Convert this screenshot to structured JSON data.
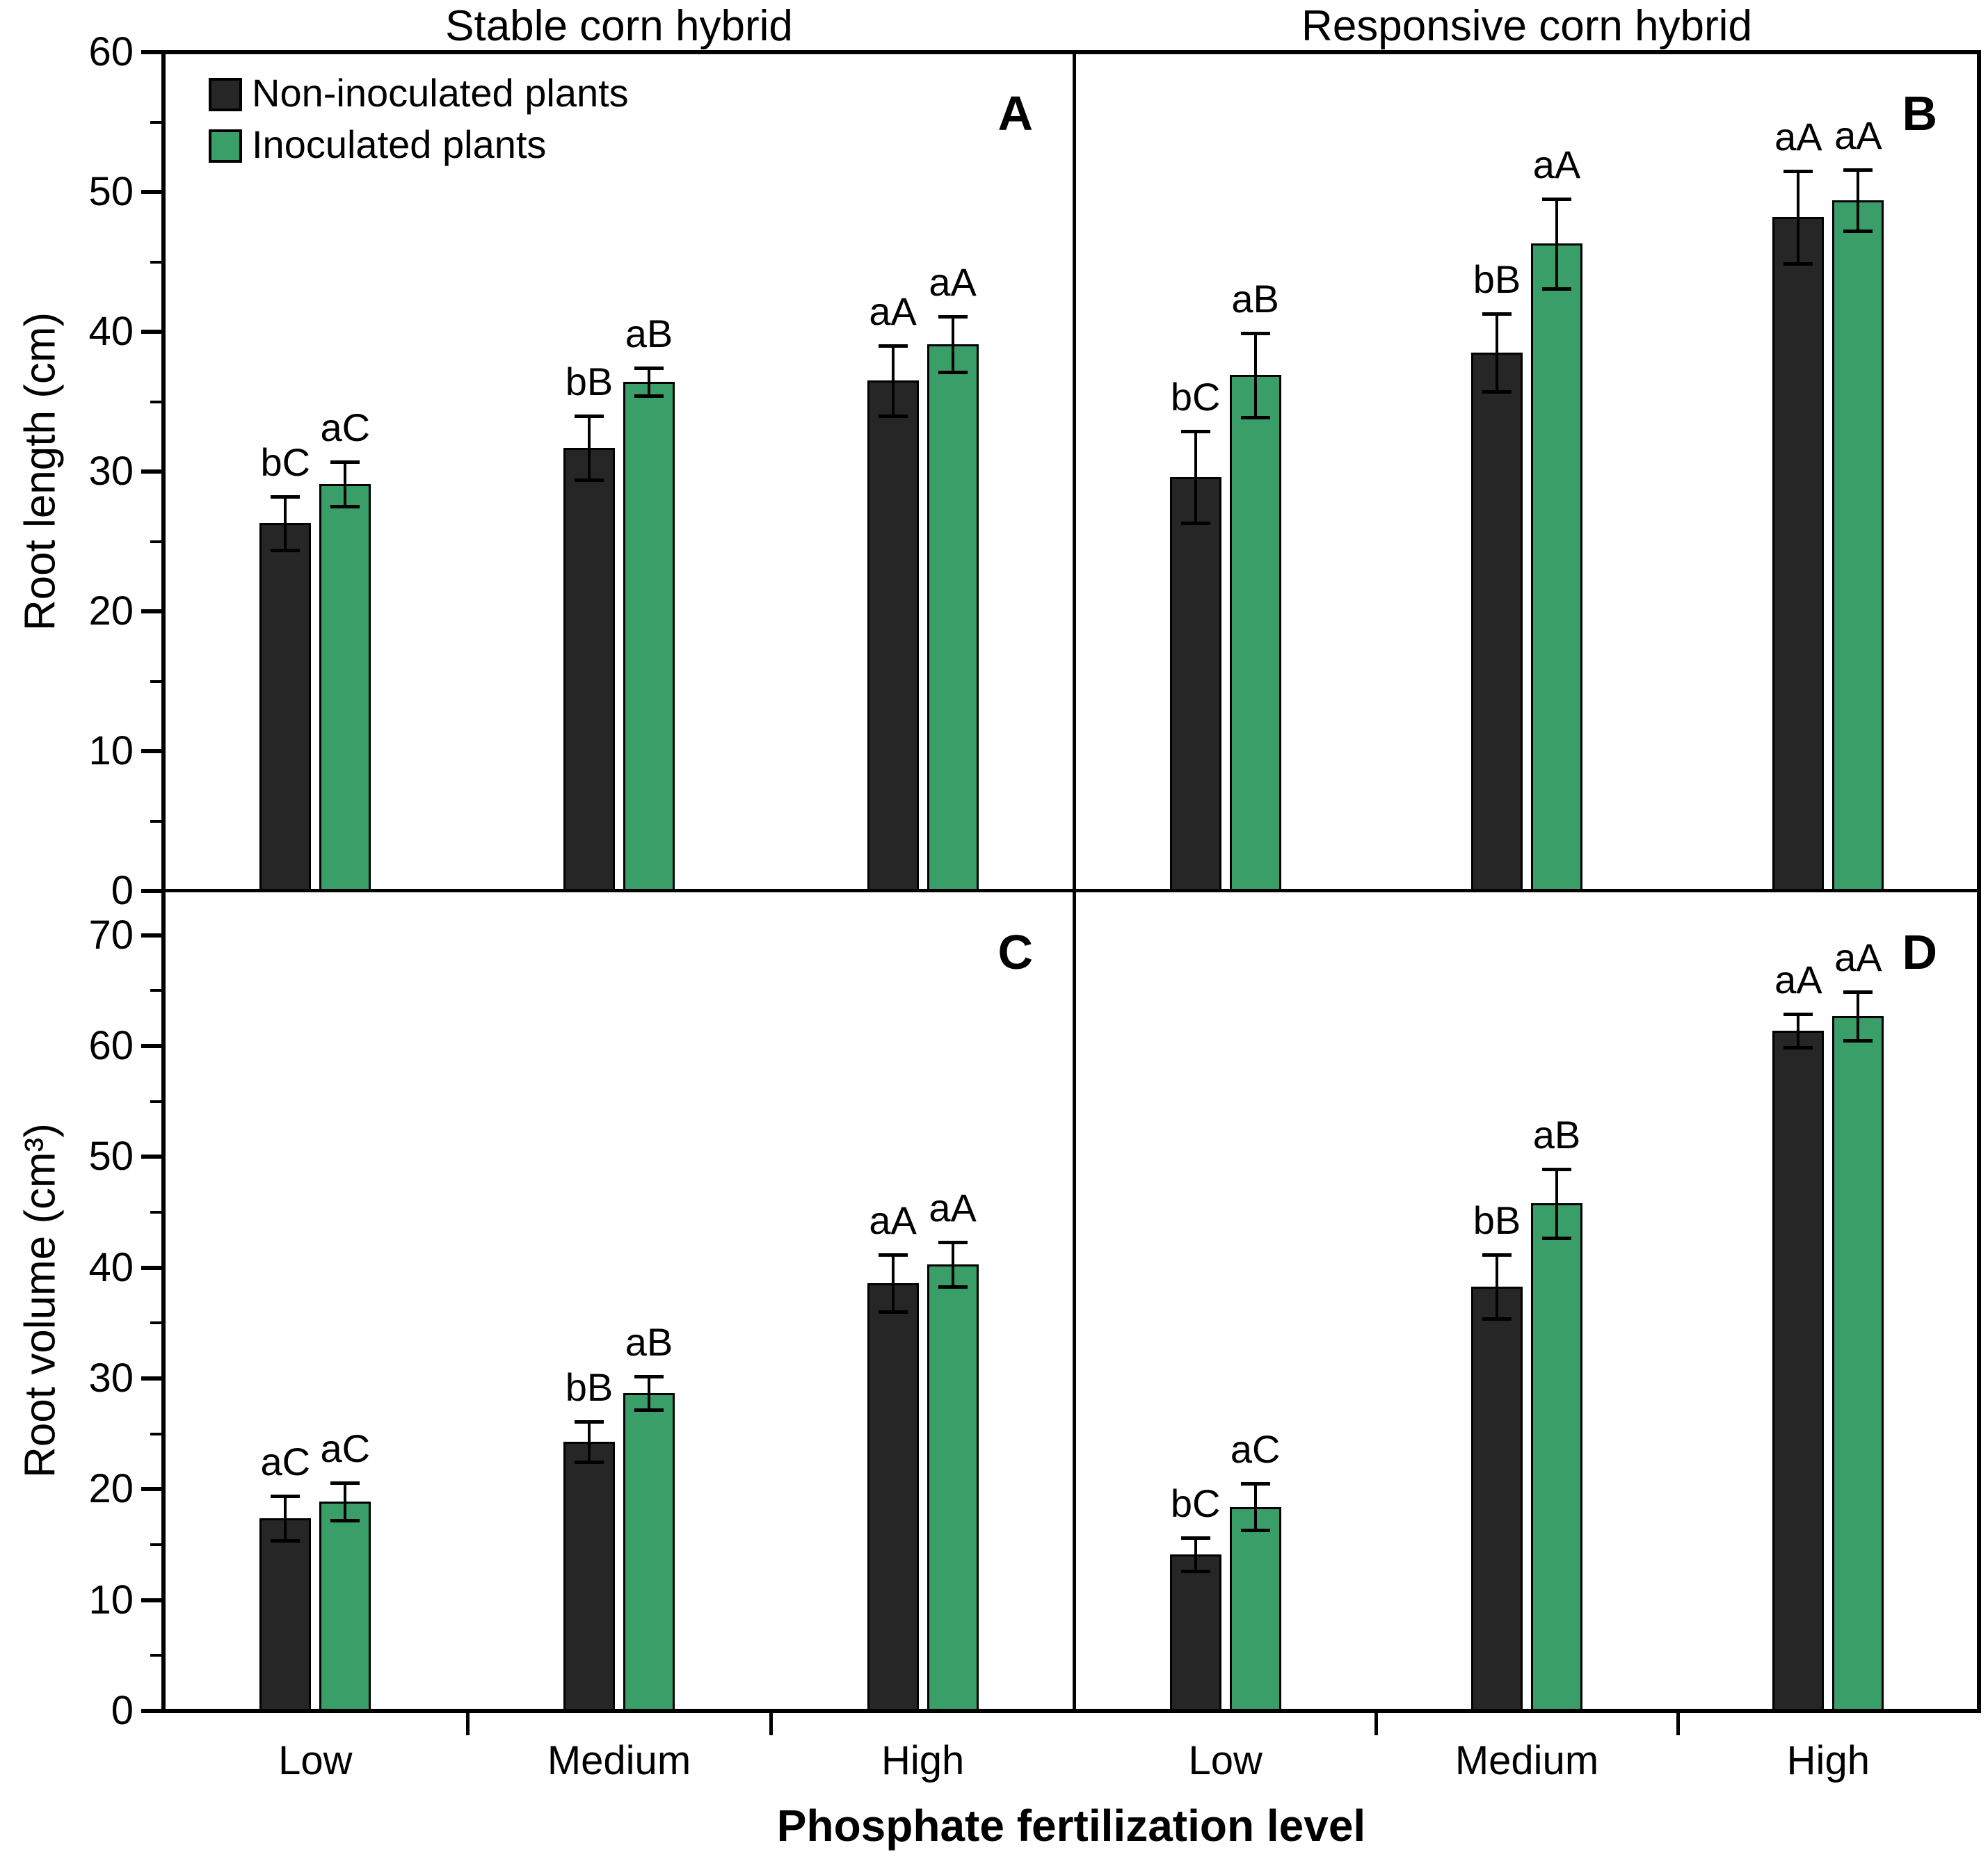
{
  "figure": {
    "xlabel": "Phosphate fertilization level",
    "background": "#ffffff"
  },
  "chart_data": {
    "type": "bar",
    "variant": "grouped-bar-with-error-bars",
    "categories": [
      "Low",
      "Medium",
      "High"
    ],
    "series": [
      "Non-inoculated plants",
      "Inoculated plants"
    ],
    "series_colors": [
      "#262626",
      "#3a9e68"
    ],
    "column_titles": [
      "Stable corn hybrid",
      "Responsive corn hybrid"
    ],
    "ylabels": [
      "Root length (cm)",
      "Root volume (cm³)"
    ],
    "xlabel": "Phosphate fertilization level",
    "legend_position": "top-left of panel A",
    "grid": false,
    "panels": [
      {
        "id": "A",
        "row": 0,
        "col": 0,
        "ylim": [
          0,
          60
        ],
        "axis_top": 60,
        "ytick_step": 10,
        "minor_step": 5,
        "groups": [
          {
            "category": "Low",
            "values": [
              26.3,
              29.1
            ],
            "errors": [
              1.9,
              1.6
            ],
            "letters": [
              "bC",
              "aC"
            ]
          },
          {
            "category": "Medium",
            "values": [
              31.7,
              36.4
            ],
            "errors": [
              2.3,
              1.0
            ],
            "letters": [
              "bB",
              "aB"
            ]
          },
          {
            "category": "High",
            "values": [
              36.5,
              39.1
            ],
            "errors": [
              2.5,
              2.0
            ],
            "letters": [
              "aA",
              "aA"
            ]
          }
        ]
      },
      {
        "id": "B",
        "row": 0,
        "col": 1,
        "ylim": [
          0,
          60
        ],
        "axis_top": 60,
        "ytick_step": 10,
        "minor_step": 5,
        "groups": [
          {
            "category": "Low",
            "values": [
              29.6,
              36.9
            ],
            "errors": [
              3.3,
              3.0
            ],
            "letters": [
              "bC",
              "aB"
            ]
          },
          {
            "category": "Medium",
            "values": [
              38.5,
              46.3
            ],
            "errors": [
              2.8,
              3.2
            ],
            "letters": [
              "bB",
              "aA"
            ]
          },
          {
            "category": "High",
            "values": [
              48.2,
              49.4
            ],
            "errors": [
              3.3,
              2.2
            ],
            "letters": [
              "aA",
              "aA"
            ]
          }
        ]
      },
      {
        "id": "C",
        "row": 1,
        "col": 0,
        "ylim": [
          0,
          70
        ],
        "axis_top": 74,
        "ytick_step": 10,
        "minor_step": 5,
        "groups": [
          {
            "category": "Low",
            "values": [
              17.4,
              18.9
            ],
            "errors": [
              2.0,
              1.7
            ],
            "letters": [
              "aC",
              "aC"
            ]
          },
          {
            "category": "Medium",
            "values": [
              24.3,
              28.7
            ],
            "errors": [
              1.8,
              1.5
            ],
            "letters": [
              "bB",
              "aB"
            ]
          },
          {
            "category": "High",
            "values": [
              38.6,
              40.3
            ],
            "errors": [
              2.6,
              2.0
            ],
            "letters": [
              "aA",
              "aA"
            ]
          }
        ]
      },
      {
        "id": "D",
        "row": 1,
        "col": 1,
        "ylim": [
          0,
          70
        ],
        "axis_top": 74,
        "ytick_step": 10,
        "minor_step": 5,
        "groups": [
          {
            "category": "Low",
            "values": [
              14.1,
              18.4
            ],
            "errors": [
              1.5,
              2.1
            ],
            "letters": [
              "bC",
              "aC"
            ]
          },
          {
            "category": "Medium",
            "values": [
              38.3,
              45.8
            ],
            "errors": [
              2.9,
              3.1
            ],
            "letters": [
              "bB",
              "aB"
            ]
          },
          {
            "category": "High",
            "values": [
              61.4,
              62.7
            ],
            "errors": [
              1.5,
              2.2
            ],
            "letters": [
              "aA",
              "aA"
            ]
          }
        ]
      }
    ]
  }
}
